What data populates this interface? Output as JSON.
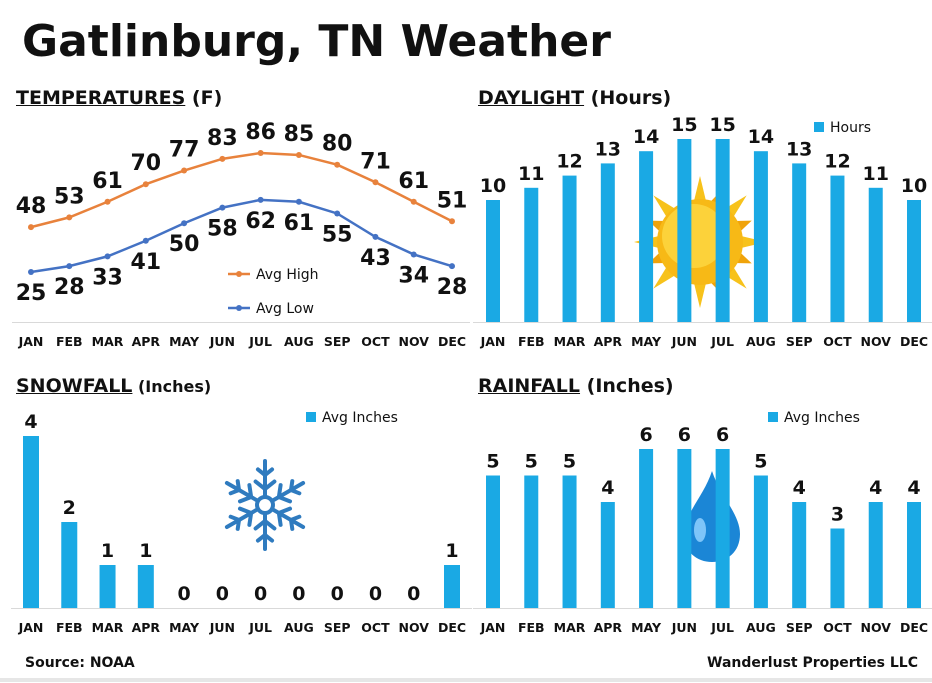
{
  "title": "Gatlinburg, TN Weather",
  "months": [
    "JAN",
    "FEB",
    "MAR",
    "APR",
    "MAY",
    "JUN",
    "JUL",
    "AUG",
    "SEP",
    "OCT",
    "NOV",
    "DEC"
  ],
  "panels": {
    "temperatures": {
      "title_main": "TEMPERATURES",
      "title_unit": " (F)"
    },
    "daylight": {
      "title_main": "DAYLIGHT",
      "title_unit": " (Hours)"
    },
    "snowfall": {
      "title_main": "SNOWFALL",
      "title_unit": " (Inches)"
    },
    "rainfall": {
      "title_main": "RAINFALL",
      "title_unit": " (Inches)"
    }
  },
  "footer": {
    "source": "Source: NOAA",
    "credit": "Wanderlust Properties LLC"
  },
  "colors": {
    "bar": "#1aa9e4",
    "high": "#e8823c",
    "low": "#4472c4",
    "axis": "#d9d9d9"
  },
  "icons": {
    "daylight": "sun-icon",
    "snowfall": "snowflake-icon",
    "rainfall": "raindrop-icon"
  },
  "chart_data": [
    {
      "type": "line",
      "categories": [
        "JAN",
        "FEB",
        "MAR",
        "APR",
        "MAY",
        "JUN",
        "JUL",
        "AUG",
        "SEP",
        "OCT",
        "NOV",
        "DEC"
      ],
      "series": [
        {
          "name": "Avg High",
          "values": [
            48,
            53,
            61,
            70,
            77,
            83,
            86,
            85,
            80,
            71,
            61,
            51
          ]
        },
        {
          "name": "Avg Low",
          "values": [
            25,
            28,
            33,
            41,
            50,
            58,
            62,
            61,
            55,
            43,
            34,
            28
          ]
        }
      ],
      "title": "TEMPERATURES (F)",
      "legend": "lower-middle",
      "grid": false
    },
    {
      "type": "bar",
      "categories": [
        "JAN",
        "FEB",
        "MAR",
        "APR",
        "MAY",
        "JUN",
        "JUL",
        "AUG",
        "SEP",
        "OCT",
        "NOV",
        "DEC"
      ],
      "series": [
        {
          "name": "Hours",
          "values": [
            10,
            11,
            12,
            13,
            14,
            15,
            15,
            14,
            13,
            12,
            11,
            10
          ]
        }
      ],
      "title": "DAYLIGHT (Hours)",
      "legend": "top-right",
      "grid": false
    },
    {
      "type": "bar",
      "categories": [
        "JAN",
        "FEB",
        "MAR",
        "APR",
        "MAY",
        "JUN",
        "JUL",
        "AUG",
        "SEP",
        "OCT",
        "NOV",
        "DEC"
      ],
      "series": [
        {
          "name": "Avg Inches",
          "values": [
            4,
            2,
            1,
            1,
            0,
            0,
            0,
            0,
            0,
            0,
            0,
            1
          ]
        }
      ],
      "title": "SNOWFALL (Inches)",
      "legend": "top-right",
      "grid": false
    },
    {
      "type": "bar",
      "categories": [
        "JAN",
        "FEB",
        "MAR",
        "APR",
        "MAY",
        "JUN",
        "JUL",
        "AUG",
        "SEP",
        "OCT",
        "NOV",
        "DEC"
      ],
      "series": [
        {
          "name": "Avg Inches",
          "values": [
            5,
            5,
            5,
            4,
            6,
            6,
            6,
            5,
            4,
            3,
            4,
            4
          ]
        }
      ],
      "title": "RAINFALL (Inches)",
      "legend": "top-right",
      "grid": false
    }
  ]
}
